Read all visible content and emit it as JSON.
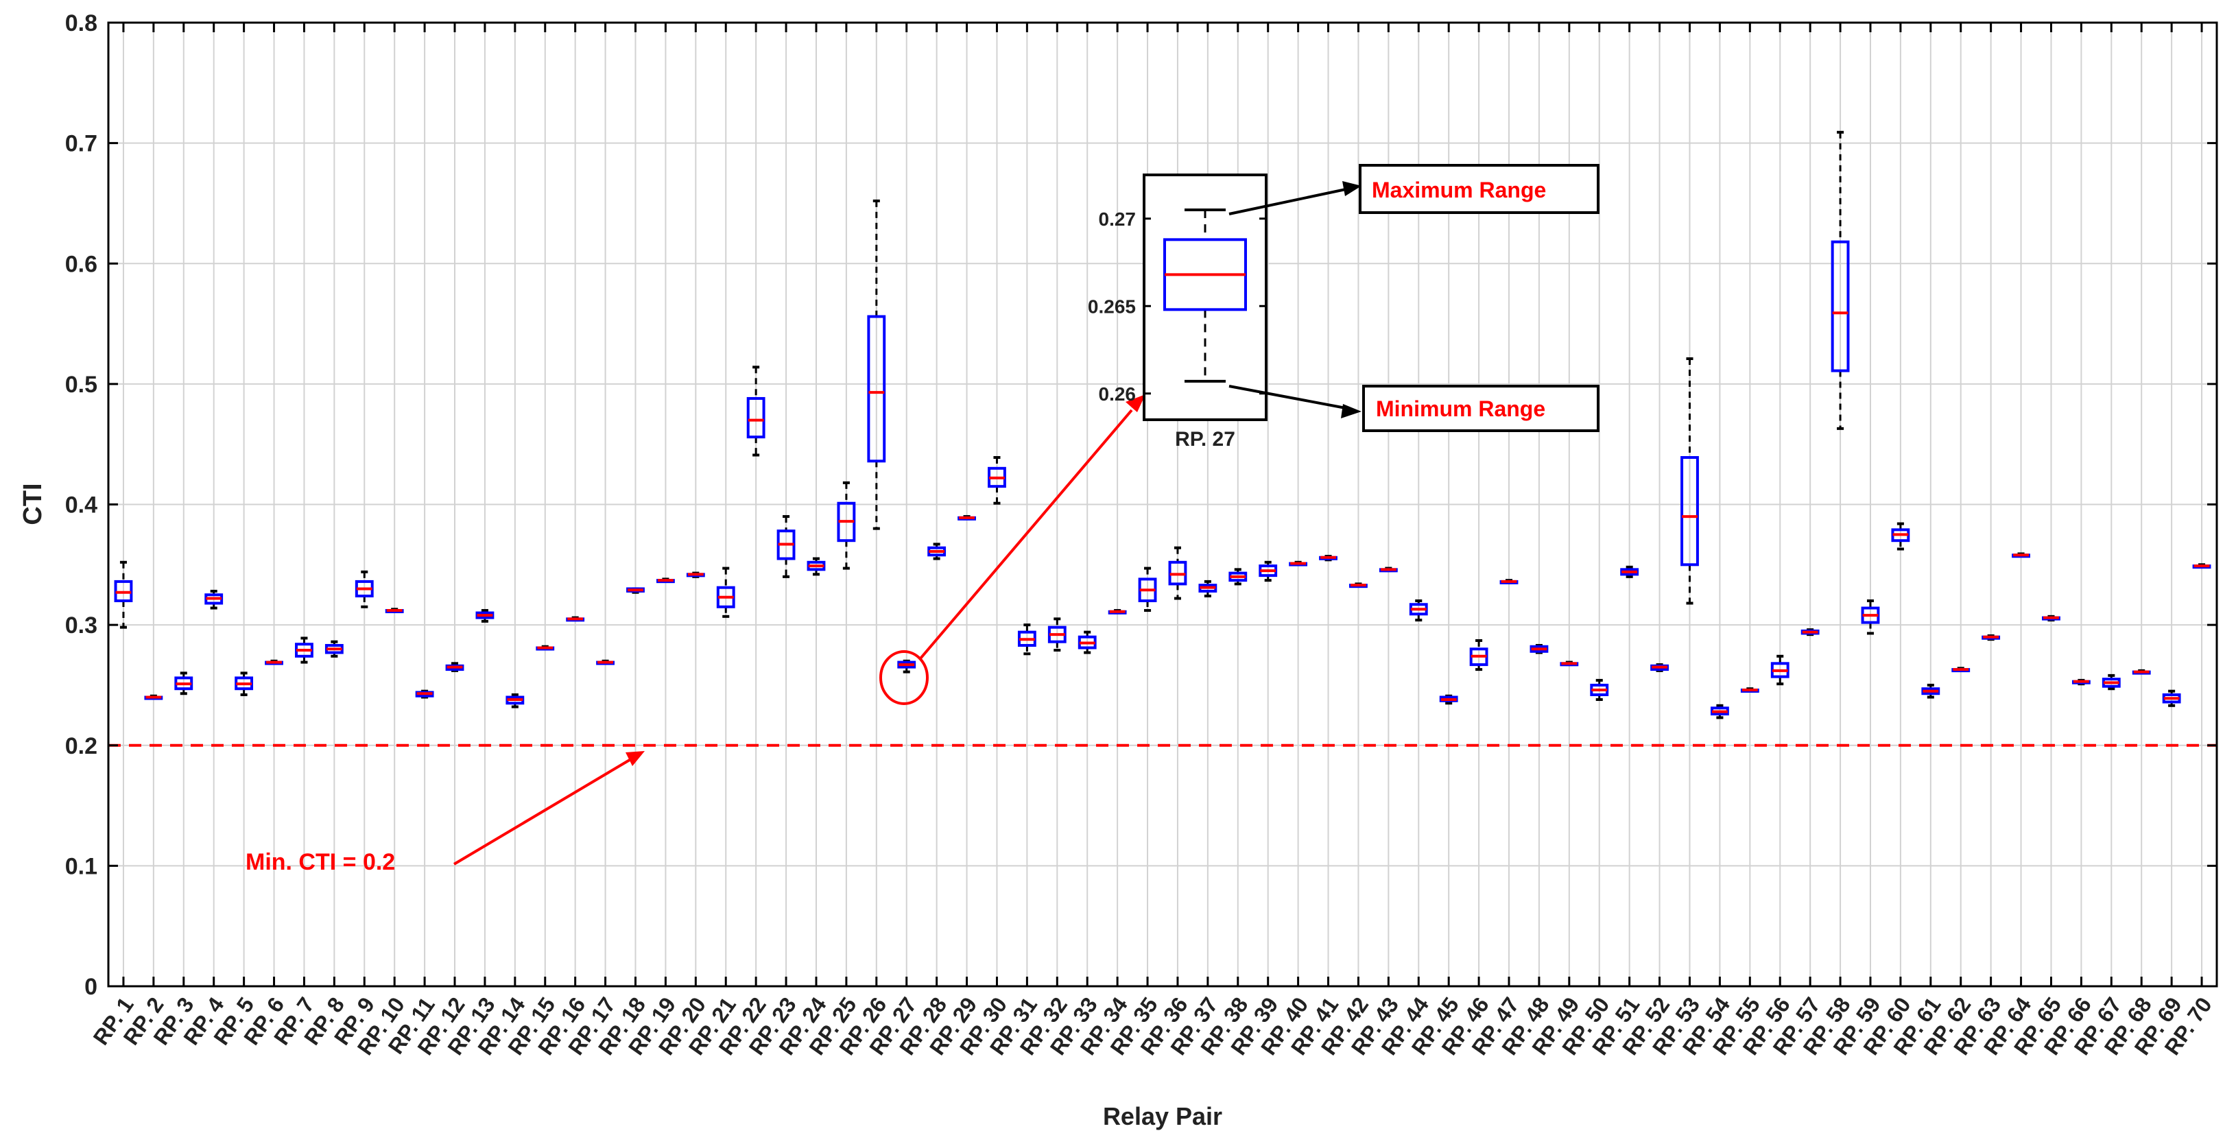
{
  "chart_data": {
    "type": "box",
    "xlabel": "Relay Pair",
    "ylabel": "CTI",
    "ylim": [
      0,
      0.8
    ],
    "yticks": [
      "0",
      "0.1",
      "0.2",
      "0.3",
      "0.4",
      "0.5",
      "0.6",
      "0.7",
      "0.8"
    ],
    "grid": true,
    "colors": {
      "box": "#0000ff",
      "median": "#ff0000",
      "whisker": "#000000",
      "threshold": "#ff0000",
      "annotation": "#ff0000"
    },
    "threshold": {
      "value": 0.2,
      "label": "Min. CTI = 0.2"
    },
    "categories": [
      "RP. 1",
      "RP. 2",
      "RP. 3",
      "RP. 4",
      "RP. 5",
      "RP. 6",
      "RP. 7",
      "RP. 8",
      "RP. 9",
      "RP. 10",
      "RP. 11",
      "RP. 12",
      "RP. 13",
      "RP. 14",
      "RP. 15",
      "RP. 16",
      "RP. 17",
      "RP. 18",
      "RP. 19",
      "RP. 20",
      "RP. 21",
      "RP. 22",
      "RP. 23",
      "RP. 24",
      "RP. 25",
      "RP. 26",
      "RP. 27",
      "RP. 28",
      "RP. 29",
      "RP. 30",
      "RP. 31",
      "RP. 32",
      "RP. 33",
      "RP. 34",
      "RP. 35",
      "RP. 36",
      "RP. 37",
      "RP. 38",
      "RP. 39",
      "RP. 40",
      "RP. 41",
      "RP. 42",
      "RP. 43",
      "RP. 44",
      "RP. 45",
      "RP. 46",
      "RP. 47",
      "RP. 48",
      "RP. 49",
      "RP. 50",
      "RP. 51",
      "RP. 52",
      "RP. 53",
      "RP. 54",
      "RP. 55",
      "RP. 56",
      "RP. 57",
      "RP. 58",
      "RP. 59",
      "RP. 60",
      "RP. 61",
      "RP. 62",
      "RP. 63",
      "RP. 64",
      "RP. 65",
      "RP. 66",
      "RP. 67",
      "RP. 68",
      "RP. 69",
      "RP. 70"
    ],
    "boxes": [
      [
        0.298,
        0.32,
        0.327,
        0.336,
        0.352
      ],
      [
        0.239,
        0.239,
        0.24,
        0.24,
        0.241
      ],
      [
        0.243,
        0.247,
        0.251,
        0.256,
        0.26
      ],
      [
        0.314,
        0.318,
        0.322,
        0.325,
        0.328
      ],
      [
        0.242,
        0.247,
        0.251,
        0.256,
        0.26
      ],
      [
        0.268,
        0.268,
        0.269,
        0.269,
        0.27
      ],
      [
        0.269,
        0.274,
        0.279,
        0.284,
        0.289
      ],
      [
        0.274,
        0.277,
        0.28,
        0.283,
        0.286
      ],
      [
        0.315,
        0.324,
        0.33,
        0.336,
        0.344
      ],
      [
        0.311,
        0.311,
        0.312,
        0.312,
        0.313
      ],
      [
        0.24,
        0.241,
        0.243,
        0.244,
        0.245
      ],
      [
        0.262,
        0.263,
        0.265,
        0.266,
        0.268
      ],
      [
        0.303,
        0.306,
        0.308,
        0.31,
        0.312
      ],
      [
        0.232,
        0.235,
        0.238,
        0.24,
        0.242
      ],
      [
        0.28,
        0.28,
        0.281,
        0.281,
        0.282
      ],
      [
        0.304,
        0.304,
        0.305,
        0.305,
        0.306
      ],
      [
        0.268,
        0.268,
        0.269,
        0.269,
        0.27
      ],
      [
        0.327,
        0.328,
        0.329,
        0.33,
        0.33
      ],
      [
        0.336,
        0.336,
        0.337,
        0.337,
        0.338
      ],
      [
        0.34,
        0.341,
        0.342,
        0.342,
        0.343
      ],
      [
        0.307,
        0.315,
        0.323,
        0.331,
        0.347
      ],
      [
        0.441,
        0.456,
        0.47,
        0.488,
        0.514
      ],
      [
        0.34,
        0.355,
        0.367,
        0.378,
        0.39
      ],
      [
        0.342,
        0.346,
        0.349,
        0.352,
        0.355
      ],
      [
        0.347,
        0.37,
        0.386,
        0.401,
        0.418
      ],
      [
        0.38,
        0.436,
        0.493,
        0.556,
        0.652
      ],
      [
        0.261,
        0.265,
        0.267,
        0.269,
        0.27
      ],
      [
        0.355,
        0.358,
        0.361,
        0.364,
        0.367
      ],
      [
        0.388,
        0.388,
        0.389,
        0.389,
        0.39
      ],
      [
        0.401,
        0.415,
        0.422,
        0.43,
        0.439
      ],
      [
        0.276,
        0.283,
        0.288,
        0.294,
        0.3
      ],
      [
        0.279,
        0.286,
        0.292,
        0.298,
        0.305
      ],
      [
        0.277,
        0.281,
        0.285,
        0.29,
        0.294
      ],
      [
        0.31,
        0.31,
        0.311,
        0.311,
        0.312
      ],
      [
        0.312,
        0.32,
        0.329,
        0.338,
        0.347
      ],
      [
        0.322,
        0.334,
        0.342,
        0.352,
        0.364
      ],
      [
        0.324,
        0.328,
        0.331,
        0.333,
        0.336
      ],
      [
        0.334,
        0.337,
        0.34,
        0.343,
        0.346
      ],
      [
        0.337,
        0.341,
        0.345,
        0.349,
        0.352
      ],
      [
        0.35,
        0.35,
        0.351,
        0.351,
        0.352
      ],
      [
        0.354,
        0.355,
        0.356,
        0.356,
        0.357
      ],
      [
        0.332,
        0.332,
        0.333,
        0.333,
        0.334
      ],
      [
        0.345,
        0.345,
        0.346,
        0.346,
        0.347
      ],
      [
        0.304,
        0.309,
        0.313,
        0.317,
        0.32
      ],
      [
        0.235,
        0.237,
        0.238,
        0.24,
        0.241
      ],
      [
        0.263,
        0.267,
        0.274,
        0.28,
        0.287
      ],
      [
        0.335,
        0.335,
        0.336,
        0.336,
        0.337
      ],
      [
        0.277,
        0.278,
        0.28,
        0.282,
        0.283
      ],
      [
        0.267,
        0.267,
        0.268,
        0.268,
        0.269
      ],
      [
        0.238,
        0.242,
        0.246,
        0.25,
        0.254
      ],
      [
        0.34,
        0.342,
        0.344,
        0.346,
        0.348
      ],
      [
        0.262,
        0.263,
        0.265,
        0.266,
        0.267
      ],
      [
        0.318,
        0.35,
        0.39,
        0.439,
        0.521
      ],
      [
        0.223,
        0.226,
        0.228,
        0.231,
        0.233
      ],
      [
        0.245,
        0.245,
        0.246,
        0.246,
        0.247
      ],
      [
        0.251,
        0.257,
        0.262,
        0.268,
        0.274
      ],
      [
        0.292,
        0.293,
        0.294,
        0.295,
        0.296
      ],
      [
        0.463,
        0.511,
        0.559,
        0.618,
        0.709
      ],
      [
        0.293,
        0.302,
        0.308,
        0.314,
        0.32
      ],
      [
        0.363,
        0.37,
        0.375,
        0.379,
        0.384
      ],
      [
        0.24,
        0.243,
        0.245,
        0.247,
        0.25
      ],
      [
        0.262,
        0.262,
        0.263,
        0.263,
        0.264
      ],
      [
        0.288,
        0.289,
        0.29,
        0.29,
        0.291
      ],
      [
        0.357,
        0.357,
        0.358,
        0.358,
        0.359
      ],
      [
        0.304,
        0.305,
        0.306,
        0.306,
        0.307
      ],
      [
        0.251,
        0.252,
        0.253,
        0.253,
        0.254
      ],
      [
        0.247,
        0.249,
        0.252,
        0.255,
        0.258
      ],
      [
        0.26,
        0.26,
        0.261,
        0.261,
        0.262
      ],
      [
        0.233,
        0.236,
        0.239,
        0.242,
        0.245
      ],
      [
        0.348,
        0.348,
        0.349,
        0.349,
        0.35
      ]
    ],
    "inset": {
      "label": "RP. 27",
      "yticks": [
        "0.26",
        "0.265",
        "0.27"
      ],
      "ylim": [
        0.2585,
        0.2725
      ],
      "box": [
        0.2607,
        0.2648,
        0.2668,
        0.2688,
        0.2705
      ],
      "max_label": "Maximum Range",
      "min_label": "Minimum Range"
    }
  }
}
